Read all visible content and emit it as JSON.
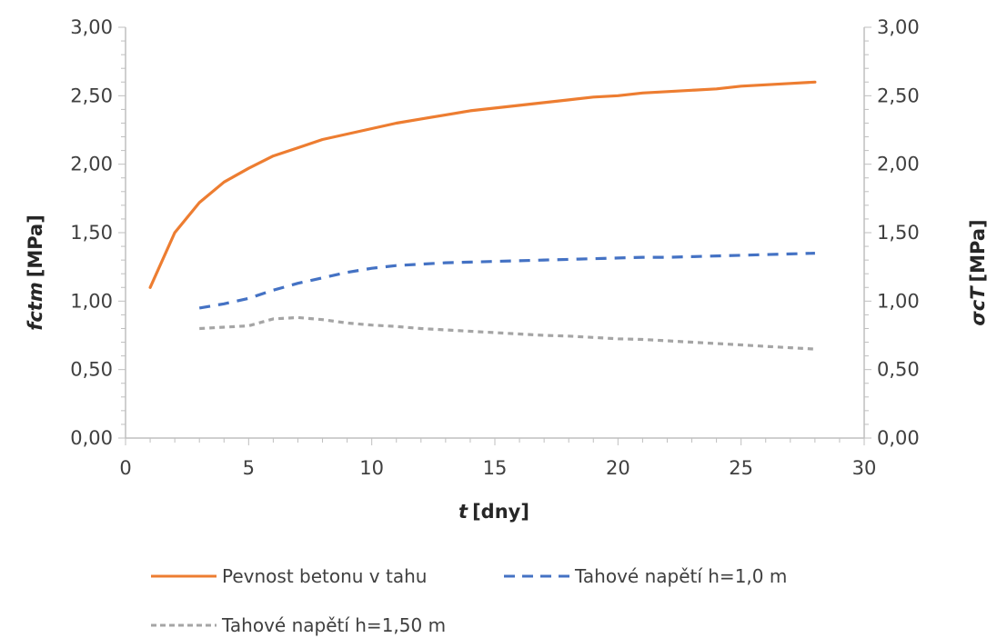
{
  "chart_data": {
    "type": "line",
    "x_axis": {
      "var": "t",
      "unit": "[dny]",
      "range": [
        0,
        30
      ],
      "ticks": [
        "0",
        "5",
        "10",
        "15",
        "20",
        "25",
        "30"
      ]
    },
    "y_left": {
      "var": "fctm",
      "unit": "[MPa]",
      "range": [
        0,
        3
      ],
      "ticks": [
        "0,00",
        "0,50",
        "1,00",
        "1,50",
        "2,00",
        "2,50",
        "3,00"
      ]
    },
    "y_right": {
      "var": "σcT",
      "unit": "[MPa]",
      "range": [
        0,
        3
      ],
      "ticks": [
        "0,00",
        "0,50",
        "1,00",
        "1,50",
        "2,00",
        "2,50",
        "3,00"
      ]
    },
    "legend_position": "bottom",
    "grid": false,
    "series": [
      {
        "name": "Pevnost betonu v tahu",
        "color": "#ED7D31",
        "style": "solid",
        "x": [
          1,
          2,
          3,
          4,
          5,
          6,
          7,
          8,
          9,
          10,
          11,
          12,
          13,
          14,
          15,
          16,
          17,
          18,
          19,
          20,
          21,
          22,
          23,
          24,
          25,
          26,
          27,
          28
        ],
        "y": [
          1.1,
          1.5,
          1.72,
          1.87,
          1.97,
          2.06,
          2.12,
          2.18,
          2.22,
          2.26,
          2.3,
          2.33,
          2.36,
          2.39,
          2.41,
          2.43,
          2.45,
          2.47,
          2.49,
          2.5,
          2.52,
          2.53,
          2.54,
          2.55,
          2.57,
          2.58,
          2.59,
          2.6
        ]
      },
      {
        "name": "Tahové napětí h=1,0 m",
        "color": "#4472C4",
        "style": "dashed",
        "x": [
          3,
          4,
          5,
          6,
          7,
          8,
          9,
          10,
          11,
          12,
          13,
          14,
          15,
          16,
          17,
          18,
          19,
          20,
          21,
          22,
          23,
          24,
          25,
          26,
          27,
          28
        ],
        "y": [
          0.95,
          0.98,
          1.02,
          1.08,
          1.13,
          1.17,
          1.21,
          1.24,
          1.26,
          1.27,
          1.28,
          1.285,
          1.29,
          1.295,
          1.3,
          1.305,
          1.31,
          1.315,
          1.32,
          1.32,
          1.325,
          1.33,
          1.335,
          1.34,
          1.345,
          1.35
        ]
      },
      {
        "name": "Tahové napětí h=1,50 m",
        "color": "#A5A5A5",
        "style": "dashed",
        "x": [
          3,
          4,
          5,
          6,
          7,
          8,
          9,
          10,
          11,
          12,
          13,
          14,
          15,
          16,
          17,
          18,
          19,
          20,
          21,
          22,
          23,
          24,
          25,
          26,
          27,
          28
        ],
        "y": [
          0.8,
          0.81,
          0.82,
          0.87,
          0.88,
          0.865,
          0.84,
          0.825,
          0.815,
          0.8,
          0.79,
          0.78,
          0.77,
          0.76,
          0.75,
          0.745,
          0.735,
          0.725,
          0.72,
          0.71,
          0.7,
          0.69,
          0.68,
          0.67,
          0.66,
          0.65
        ]
      }
    ]
  }
}
